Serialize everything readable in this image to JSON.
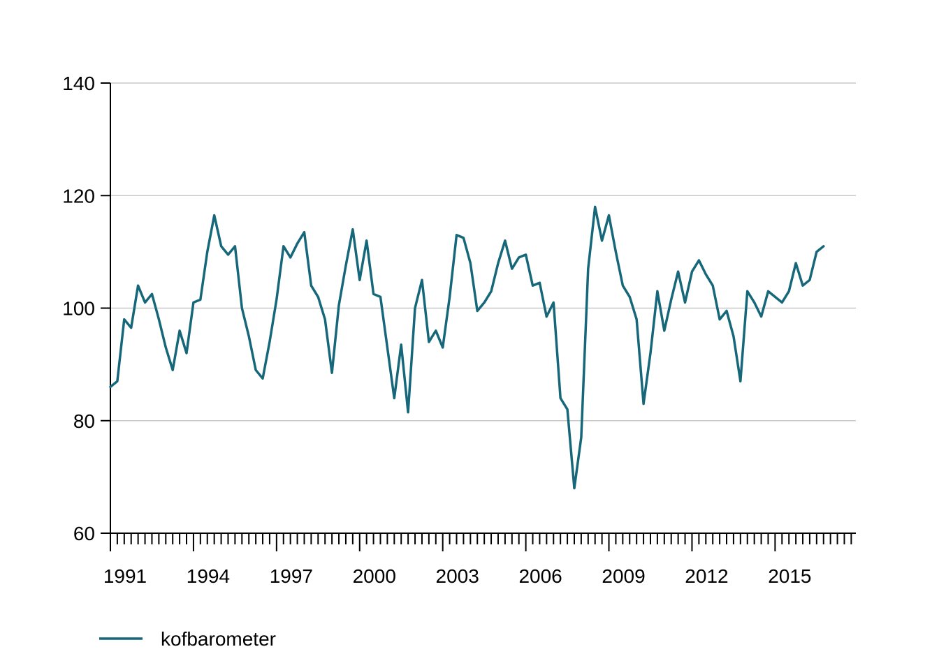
{
  "chart_data": {
    "type": "line",
    "title": "",
    "xlabel": "",
    "ylabel": "",
    "ylim": [
      60,
      140
    ],
    "xlim": [
      "1991-01",
      "2017-12"
    ],
    "yticks": [
      "60",
      "80",
      "100",
      "120",
      "140"
    ],
    "xticks": [
      "1991",
      "1994",
      "1997",
      "2000",
      "2003",
      "2006",
      "2009",
      "2012",
      "2015"
    ],
    "grid": "horizontal",
    "legend_position": "bottom-left",
    "x_frequency": "quarterly",
    "series": [
      {
        "name": "kofbarometer",
        "color": "#16677a",
        "points": [
          [
            "1991-01",
            86.0
          ],
          [
            "1991-04",
            87.0
          ],
          [
            "1991-07",
            98.0
          ],
          [
            "1991-10",
            96.5
          ],
          [
            "1992-01",
            104.0
          ],
          [
            "1992-04",
            101.0
          ],
          [
            "1992-07",
            102.5
          ],
          [
            "1992-10",
            98.0
          ],
          [
            "1993-01",
            93.0
          ],
          [
            "1993-04",
            89.0
          ],
          [
            "1993-07",
            96.0
          ],
          [
            "1993-10",
            92.0
          ],
          [
            "1994-01",
            101.0
          ],
          [
            "1994-04",
            101.5
          ],
          [
            "1994-07",
            110.0
          ],
          [
            "1994-10",
            116.5
          ],
          [
            "1995-01",
            111.0
          ],
          [
            "1995-04",
            109.5
          ],
          [
            "1995-07",
            111.0
          ],
          [
            "1995-10",
            100.0
          ],
          [
            "1996-01",
            95.0
          ],
          [
            "1996-04",
            89.0
          ],
          [
            "1996-07",
            87.5
          ],
          [
            "1996-10",
            94.0
          ],
          [
            "1997-01",
            101.5
          ],
          [
            "1997-04",
            111.0
          ],
          [
            "1997-07",
            109.0
          ],
          [
            "1997-10",
            111.5
          ],
          [
            "1998-01",
            113.5
          ],
          [
            "1998-04",
            104.0
          ],
          [
            "1998-07",
            102.0
          ],
          [
            "1998-10",
            98.0
          ],
          [
            "1999-01",
            88.5
          ],
          [
            "1999-04",
            100.5
          ],
          [
            "1999-07",
            107.5
          ],
          [
            "1999-10",
            114.0
          ],
          [
            "2000-01",
            105.0
          ],
          [
            "2000-04",
            112.0
          ],
          [
            "2000-07",
            102.5
          ],
          [
            "2000-10",
            102.0
          ],
          [
            "2001-01",
            93.0
          ],
          [
            "2001-04",
            84.0
          ],
          [
            "2001-07",
            93.5
          ],
          [
            "2001-10",
            81.5
          ],
          [
            "2002-01",
            100.0
          ],
          [
            "2002-04",
            105.0
          ],
          [
            "2002-07",
            94.0
          ],
          [
            "2002-10",
            96.0
          ],
          [
            "2003-01",
            93.0
          ],
          [
            "2003-04",
            102.0
          ],
          [
            "2003-07",
            113.0
          ],
          [
            "2003-10",
            112.5
          ],
          [
            "2004-01",
            108.0
          ],
          [
            "2004-04",
            99.5
          ],
          [
            "2004-07",
            101.0
          ],
          [
            "2004-10",
            103.0
          ],
          [
            "2005-01",
            108.0
          ],
          [
            "2005-04",
            112.0
          ],
          [
            "2005-07",
            107.0
          ],
          [
            "2005-10",
            109.0
          ],
          [
            "2006-01",
            109.5
          ],
          [
            "2006-04",
            104.0
          ],
          [
            "2006-07",
            104.5
          ],
          [
            "2006-10",
            98.5
          ],
          [
            "2007-01",
            101.0
          ],
          [
            "2007-04",
            84.0
          ],
          [
            "2007-07",
            82.0
          ],
          [
            "2007-10",
            68.0
          ],
          [
            "2008-01",
            77.0
          ],
          [
            "2008-04",
            107.0
          ],
          [
            "2008-07",
            118.0
          ],
          [
            "2008-10",
            112.0
          ],
          [
            "2009-01",
            116.5
          ],
          [
            "2009-04",
            110.0
          ],
          [
            "2009-07",
            104.0
          ],
          [
            "2009-10",
            102.0
          ],
          [
            "2010-01",
            98.0
          ],
          [
            "2010-04",
            83.0
          ],
          [
            "2010-07",
            92.0
          ],
          [
            "2010-10",
            103.0
          ],
          [
            "2011-01",
            96.0
          ],
          [
            "2011-04",
            101.5
          ],
          [
            "2011-07",
            106.5
          ],
          [
            "2011-10",
            101.0
          ],
          [
            "2012-01",
            106.5
          ],
          [
            "2012-04",
            108.5
          ],
          [
            "2012-07",
            106.0
          ],
          [
            "2012-10",
            104.0
          ],
          [
            "2013-01",
            98.0
          ],
          [
            "2013-04",
            99.5
          ],
          [
            "2013-07",
            95.0
          ],
          [
            "2013-10",
            87.0
          ],
          [
            "2014-01",
            103.0
          ],
          [
            "2014-04",
            101.0
          ],
          [
            "2014-07",
            98.5
          ],
          [
            "2014-10",
            103.0
          ],
          [
            "2015-01",
            102.0
          ],
          [
            "2015-04",
            101.0
          ],
          [
            "2015-07",
            103.0
          ],
          [
            "2015-10",
            108.0
          ],
          [
            "2016-01",
            104.0
          ],
          [
            "2016-04",
            105.0
          ],
          [
            "2016-07",
            110.0
          ],
          [
            "2016-10",
            111.0
          ]
        ]
      }
    ]
  }
}
